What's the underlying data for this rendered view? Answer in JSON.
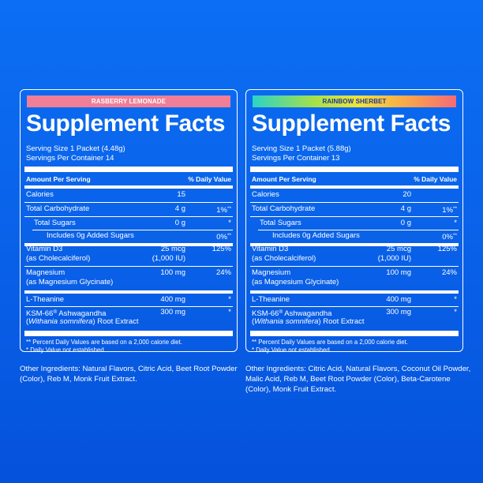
{
  "panels": [
    {
      "flavor": "RASBERRY LEMONADE",
      "title": "Supplement Facts",
      "serving_size": "Serving Size 1 Packet (4.48g)",
      "servings_per_container": "Servings Per Container 14",
      "header_amount": "Amount Per Serving",
      "header_dv": "% Daily Value",
      "calories": {
        "name": "Calories",
        "amount": "15"
      },
      "carb": {
        "name": "Total Carbohydrate",
        "amount": "4 g",
        "dv": "1%",
        "dv_mark": "**"
      },
      "sugars": {
        "name": "Total Sugars",
        "amount": "0 g",
        "dv": "*"
      },
      "added_sugars": {
        "name": "Includes 0g Added Sugars",
        "dv": "0%",
        "dv_mark": "**"
      },
      "vitd": {
        "name": "Vitamin D3",
        "name2": "(as Cholecalciferol)",
        "amount": "25 mcg",
        "amount2": "(1,000 IU)",
        "dv": "125%"
      },
      "magnesium": {
        "name": "Magnesium",
        "name2": "(as Magnesium Glycinate)",
        "amount": "100 mg",
        "dv": "24%"
      },
      "theanine": {
        "name": "L-Theanine",
        "amount": "400 mg",
        "dv": "*"
      },
      "ashwa": {
        "name": "KSM-66",
        "reg": "®",
        "name_rest": " Ashwagandha",
        "latin": "Withania somnifera",
        "name2_rest": " Root Extract",
        "amount": "300 mg",
        "dv": "*"
      },
      "foot1": "** Percent Daily Values are based on a 2,000 calorie diet.",
      "foot2": "* Daily Value not established.",
      "other": "Other Ingredients: Natural Flavors, Citric Acid, Beet Root Powder (Color), Reb M, Monk Fruit Extract."
    },
    {
      "flavor": "RAINBOW SHERBET",
      "title": "Supplement Facts",
      "serving_size": "Serving Size 1 Packet (5.88g)",
      "servings_per_container": "Servings Per Container 13",
      "header_amount": "Amount Per Serving",
      "header_dv": "% Daily Value",
      "calories": {
        "name": "Calories",
        "amount": "20"
      },
      "carb": {
        "name": "Total Carbohydrate",
        "amount": "4 g",
        "dv": "1%",
        "dv_mark": "**"
      },
      "sugars": {
        "name": "Total Sugars",
        "amount": "0 g",
        "dv": "*"
      },
      "added_sugars": {
        "name": "Includes 0g Added Sugars",
        "dv": "0%",
        "dv_mark": "**"
      },
      "vitd": {
        "name": "Vitamin D3",
        "name2": "(as Cholecalciferol)",
        "amount": "25 mcg",
        "amount2": "(1,000 IU)",
        "dv": "125%"
      },
      "magnesium": {
        "name": "Magnesium",
        "name2": "(as Magnesium Glycinate)",
        "amount": "100 mg",
        "dv": "24%"
      },
      "theanine": {
        "name": "L-Theanine",
        "amount": "400 mg",
        "dv": "*"
      },
      "ashwa": {
        "name": "KSM-66",
        "reg": "®",
        "name_rest": " Ashwagandha",
        "latin": "Withania somnifera",
        "name2_rest": " Root Extract",
        "amount": "300 mg",
        "dv": "*"
      },
      "foot1": "** Percent Daily Values are based on a 2,000 calorie diet.",
      "foot2": "* Daily Value not established.",
      "other": "Other Ingredients: Citric Acid, Natural Flavors, Coconut Oil Powder, Malic Acid, Reb M, Beet Root Powder (Color), Beta-Carotene (Color), Monk Fruit Extract."
    }
  ]
}
